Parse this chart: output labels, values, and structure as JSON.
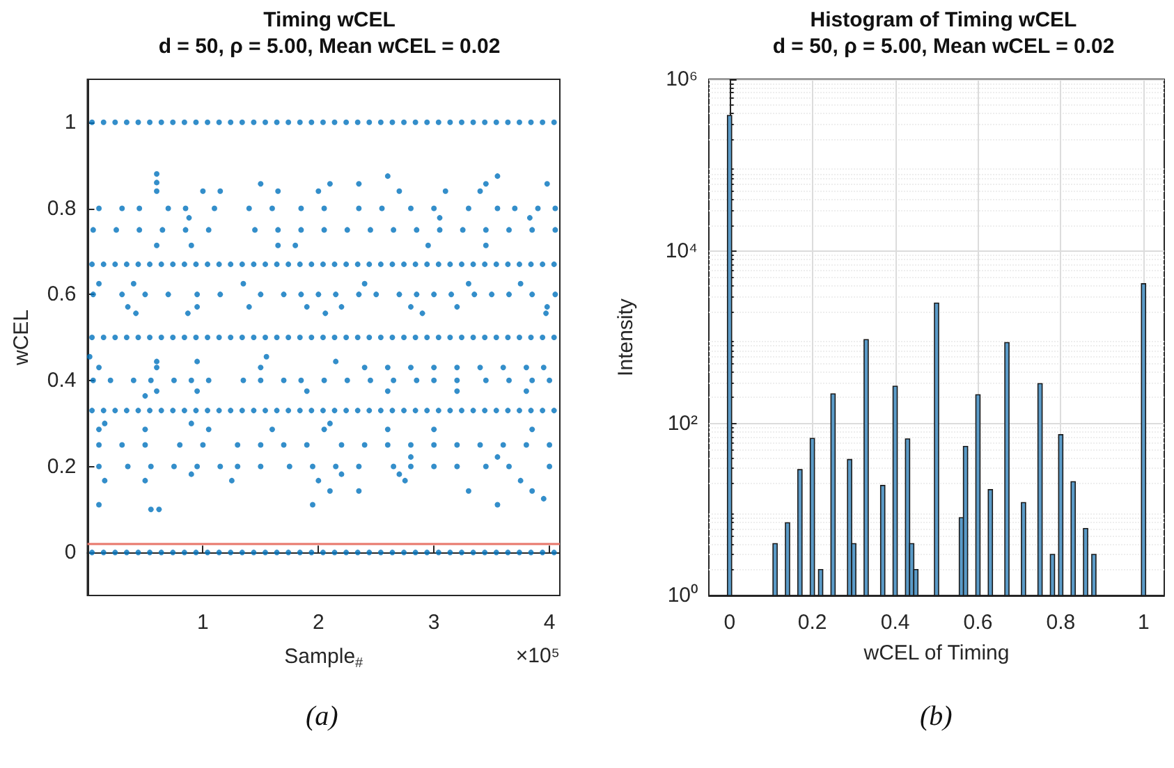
{
  "chart_data": [
    {
      "type": "scatter",
      "title": "Timing wCEL",
      "subtitle": "d = 50, ρ = 5.00, Mean wCEL = 0.02",
      "xlabel": "Sample$_{#}$",
      "ylabel": "wCEL",
      "annotations": [
        "×10⁵",
        "(a)"
      ],
      "marker": "circle",
      "xlim": [
        0,
        4.09
      ],
      "xticks": [
        1,
        2,
        3,
        4
      ],
      "ylim": [
        -0.1,
        1.1
      ],
      "yticks": [
        0,
        0.2,
        0.4,
        0.6,
        0.8,
        1
      ],
      "ref_lines": [
        {
          "axis": "y",
          "value": 0.02,
          "color": "#e8776a"
        }
      ],
      "x": [
        0.04,
        0.14,
        0.24,
        0.34,
        0.44,
        0.54,
        0.64,
        0.74,
        0.84,
        0.94,
        1.04,
        1.14,
        1.24,
        1.34,
        1.44,
        1.54,
        1.64,
        1.74,
        1.84,
        1.94,
        2.04,
        2.14,
        2.24,
        2.34,
        2.44,
        2.54,
        2.64,
        2.74,
        2.84,
        2.94,
        3.04,
        3.14,
        3.24,
        3.34,
        3.44,
        3.54,
        3.64,
        3.74,
        3.84,
        3.94,
        4.04
      ],
      "series": [
        {
          "color": "#0072bd",
          "values": [
            1,
            1,
            1,
            1,
            1,
            1,
            1,
            1,
            1,
            1,
            1,
            1,
            1,
            1,
            1,
            1,
            1,
            1,
            1,
            1,
            1,
            1,
            1,
            1,
            1,
            1,
            1,
            1,
            1,
            1,
            1,
            1,
            1,
            1,
            1,
            1,
            1,
            1,
            1,
            1,
            1
          ]
        },
        {
          "color": "#0072bd",
          "values": [
            0.67,
            0.67,
            0.67,
            0.67,
            0.67,
            0.67,
            0.67,
            0.67,
            0.67,
            0.67,
            0.67,
            0.67,
            0.67,
            0.67,
            0.67,
            0.67,
            0.67,
            0.67,
            0.67,
            0.67,
            0.67,
            0.67,
            0.67,
            0.67,
            0.67,
            0.67,
            0.67,
            0.67,
            0.67,
            0.67,
            0.67,
            0.67,
            0.67,
            0.67,
            0.67,
            0.67,
            0.67,
            0.67,
            0.67,
            0.67,
            0.67
          ]
        },
        {
          "color": "#0072bd",
          "values": [
            0.5,
            0.5,
            0.5,
            0.5,
            0.5,
            0.5,
            0.5,
            0.5,
            0.5,
            0.5,
            0.5,
            0.5,
            0.5,
            0.5,
            0.5,
            0.5,
            0.5,
            0.5,
            0.5,
            0.5,
            0.5,
            0.5,
            0.5,
            0.5,
            0.5,
            0.5,
            0.5,
            0.5,
            0.5,
            0.5,
            0.5,
            0.5,
            0.5,
            0.5,
            0.5,
            0.5,
            0.5,
            0.5,
            0.5,
            0.5,
            0.5
          ]
        },
        {
          "color": "#0072bd",
          "values": [
            0.33,
            0.33,
            0.33,
            0.33,
            0.33,
            0.33,
            0.33,
            0.33,
            0.33,
            0.33,
            0.33,
            0.33,
            0.33,
            0.33,
            0.33,
            0.33,
            0.33,
            0.33,
            0.33,
            0.33,
            0.33,
            0.33,
            0.33,
            0.33,
            0.33,
            0.33,
            0.33,
            0.33,
            0.33,
            0.33,
            0.33,
            0.33,
            0.33,
            0.33,
            0.33,
            0.33,
            0.33,
            0.33,
            0.33,
            0.33,
            0.33
          ]
        },
        {
          "color": "#0072bd",
          "values": [
            0,
            0,
            0,
            0,
            0,
            0,
            0,
            0,
            0,
            0,
            0,
            0,
            0,
            0,
            0,
            0,
            0,
            0,
            0,
            0,
            0,
            0,
            0,
            0,
            0,
            0,
            0,
            0,
            0,
            0,
            0,
            0,
            0,
            0,
            0,
            0,
            0,
            0,
            0,
            0,
            0
          ]
        },
        {
          "color": "#0072bd",
          "x": [
            0.05,
            0.25,
            0.45,
            0.65,
            0.85,
            1.05,
            1.45,
            1.65,
            1.85,
            2.05,
            2.25,
            2.45,
            2.65,
            2.85,
            3.05,
            3.25,
            3.45,
            3.65,
            3.85,
            4.05
          ],
          "values": [
            0.75,
            0.75,
            0.75,
            0.75,
            0.75,
            0.75,
            0.75,
            0.75,
            0.75,
            0.75,
            0.75,
            0.75,
            0.75,
            0.75,
            0.75,
            0.75,
            0.75,
            0.75,
            0.75,
            0.75
          ]
        },
        {
          "color": "#0072bd",
          "x": [
            0.1,
            0.3,
            0.5,
            0.8,
            1.0,
            1.3,
            1.5,
            1.7,
            1.9,
            2.2,
            2.4,
            2.6,
            2.8,
            3.0,
            3.2,
            3.4,
            3.6,
            3.8,
            4.0
          ],
          "values": [
            0.25,
            0.25,
            0.25,
            0.25,
            0.25,
            0.25,
            0.25,
            0.25,
            0.25,
            0.25,
            0.25,
            0.25,
            0.25,
            0.25,
            0.25,
            0.25,
            0.25,
            0.25,
            0.25
          ]
        },
        {
          "color": "#0072bd",
          "x": [
            0.1,
            0.3,
            0.45,
            0.7,
            0.85,
            1.1,
            1.4,
            1.6,
            1.85,
            2.05,
            2.35,
            2.55,
            2.8,
            3.0,
            3.3,
            3.55,
            3.7,
            3.9,
            4.05
          ],
          "values": [
            0.8,
            0.8,
            0.8,
            0.8,
            0.8,
            0.8,
            0.8,
            0.8,
            0.8,
            0.8,
            0.8,
            0.8,
            0.8,
            0.8,
            0.8,
            0.8,
            0.8,
            0.8,
            0.8
          ]
        },
        {
          "color": "#0072bd",
          "x": [
            0.05,
            0.3,
            0.5,
            0.7,
            0.95,
            1.15,
            1.5,
            1.7,
            1.85,
            2.0,
            2.15,
            2.35,
            2.5,
            2.7,
            2.85,
            3.0,
            3.15,
            3.35,
            3.5,
            3.65,
            3.85,
            4.05
          ],
          "values": [
            0.6,
            0.6,
            0.6,
            0.6,
            0.6,
            0.6,
            0.6,
            0.6,
            0.6,
            0.6,
            0.6,
            0.6,
            0.6,
            0.6,
            0.6,
            0.6,
            0.6,
            0.6,
            0.6,
            0.6,
            0.6,
            0.6
          ]
        },
        {
          "color": "#0072bd",
          "x": [
            0.05,
            0.2,
            0.4,
            0.55,
            0.75,
            0.9,
            1.05,
            1.35,
            1.5,
            1.7,
            1.85,
            2.05,
            2.25,
            2.45,
            2.65,
            2.85,
            3.0,
            3.2,
            3.45,
            3.65,
            3.85,
            4.0
          ],
          "values": [
            0.4,
            0.4,
            0.4,
            0.4,
            0.4,
            0.4,
            0.4,
            0.4,
            0.4,
            0.4,
            0.4,
            0.4,
            0.4,
            0.4,
            0.4,
            0.4,
            0.4,
            0.4,
            0.4,
            0.4,
            0.4,
            0.4
          ]
        },
        {
          "color": "#0072bd",
          "x": [
            0.1,
            0.35,
            0.55,
            0.75,
            0.95,
            1.15,
            1.3,
            1.5,
            1.75,
            1.95,
            2.15,
            2.35,
            2.65,
            2.8,
            3.0,
            3.2,
            3.45,
            3.65,
            4.0
          ],
          "values": [
            0.2,
            0.2,
            0.2,
            0.2,
            0.2,
            0.2,
            0.2,
            0.2,
            0.2,
            0.2,
            0.2,
            0.2,
            0.2,
            0.2,
            0.2,
            0.2,
            0.2,
            0.2,
            0.2
          ]
        },
        {
          "color": "#0072bd",
          "x": [
            0.1,
            0.6,
            1.5,
            2.4,
            2.6,
            2.8,
            3.0,
            3.2,
            3.4,
            3.6,
            3.8,
            3.95
          ],
          "values": [
            0.43,
            0.43,
            0.43,
            0.43,
            0.43,
            0.43,
            0.43,
            0.43,
            0.43,
            0.43,
            0.43,
            0.43
          ]
        },
        {
          "color": "#0072bd",
          "x": [
            0.6,
            0.6,
            0.6,
            1.0,
            1.15,
            1.65,
            2.0,
            2.7,
            3.1,
            3.4,
            2.6,
            3.55,
            1.5,
            2.1,
            2.35,
            3.45,
            3.98,
            0.88,
            3.05,
            3.83,
            0.6,
            0.9,
            1.65,
            1.8,
            2.95,
            3.45,
            0.35,
            0.95,
            1.4,
            1.9,
            2.2,
            2.8,
            3.2,
            3.98,
            0.42,
            0.87,
            2.06,
            2.9,
            3.97,
            0.1,
            0.4,
            1.35,
            2.4,
            3.3,
            3.75,
            0.02,
            1.55,
            0.6,
            0.95,
            2.15,
            0.6,
            0.95,
            1.9,
            2.6,
            3.2,
            3.8,
            0.5,
            0.15,
            0.9,
            2.1,
            0.1,
            0.5,
            1.05,
            1.6,
            2.05,
            2.6,
            3.0,
            3.85,
            2.8,
            3.55,
            0.15,
            0.5,
            1.25,
            2.0,
            2.75,
            3.75,
            2.1,
            2.35,
            3.3,
            3.85,
            3.95,
            0.1,
            1.95,
            3.55,
            0.55,
            0.62,
            0.9,
            2.2,
            2.7
          ],
          "values": [
            0.88,
            0.86,
            0.84,
            0.84,
            0.84,
            0.84,
            0.84,
            0.84,
            0.84,
            0.84,
            0.875,
            0.875,
            0.857,
            0.857,
            0.857,
            0.857,
            0.857,
            0.778,
            0.778,
            0.778,
            0.714,
            0.714,
            0.714,
            0.714,
            0.714,
            0.714,
            0.571,
            0.571,
            0.571,
            0.571,
            0.571,
            0.571,
            0.571,
            0.571,
            0.556,
            0.556,
            0.556,
            0.556,
            0.556,
            0.625,
            0.625,
            0.625,
            0.625,
            0.625,
            0.625,
            0.455,
            0.455,
            0.444,
            0.444,
            0.444,
            0.375,
            0.375,
            0.375,
            0.375,
            0.375,
            0.375,
            0.364,
            0.3,
            0.3,
            0.3,
            0.286,
            0.286,
            0.286,
            0.286,
            0.286,
            0.286,
            0.286,
            0.286,
            0.222,
            0.222,
            0.167,
            0.167,
            0.167,
            0.167,
            0.167,
            0.167,
            0.143,
            0.143,
            0.143,
            0.143,
            0.125,
            0.111,
            0.111,
            0.111,
            0.1,
            0.1,
            0.182,
            0.182,
            0.182
          ]
        }
      ]
    },
    {
      "type": "histogram",
      "title": "Histogram of Timing wCEL",
      "subtitle": "d = 50, ρ = 5.00, Mean wCEL = 0.02",
      "xlabel": "wCEL of Timing",
      "ylabel": "Intensity",
      "annotations": [
        "(b)"
      ],
      "color": "#5b9bc8",
      "log": "y",
      "grid": true,
      "xlim": [
        -0.05,
        1.05
      ],
      "xticks": [
        0,
        0.2,
        0.4,
        0.6,
        0.8,
        1
      ],
      "ylim": [
        1,
        1000000
      ],
      "yticks": [
        {
          "value": 1,
          "label": "10⁰"
        },
        {
          "value": 100,
          "label": "10²"
        },
        {
          "value": 10000,
          "label": "10⁴"
        },
        {
          "value": 1000000,
          "label": "10⁶"
        }
      ],
      "bins": [
        -0.005,
        0.005,
        0.105,
        0.115,
        0.135,
        0.145,
        0.165,
        0.175,
        0.195,
        0.205,
        0.215,
        0.225,
        0.245,
        0.255,
        0.285,
        0.295,
        0.305,
        0.325,
        0.335,
        0.365,
        0.375,
        0.395,
        0.405,
        0.425,
        0.435,
        0.445,
        0.455,
        0.495,
        0.505,
        0.555,
        0.565,
        0.575,
        0.595,
        0.605,
        0.625,
        0.635,
        0.665,
        0.675,
        0.705,
        0.715,
        0.745,
        0.755,
        0.775,
        0.785,
        0.795,
        0.805,
        0.825,
        0.835,
        0.855,
        0.865,
        0.875,
        0.885,
        0.995,
        1.005
      ],
      "values": [
        380000,
        null,
        4,
        null,
        7,
        null,
        29,
        null,
        67,
        null,
        2,
        null,
        220,
        null,
        38,
        4,
        null,
        940,
        null,
        19,
        null,
        270,
        null,
        66,
        4,
        2,
        null,
        2500,
        null,
        8,
        54,
        null,
        215,
        null,
        17,
        null,
        870,
        null,
        12,
        null,
        290,
        null,
        3,
        null,
        74,
        null,
        21,
        null,
        6,
        null,
        3,
        null,
        4200
      ]
    }
  ]
}
